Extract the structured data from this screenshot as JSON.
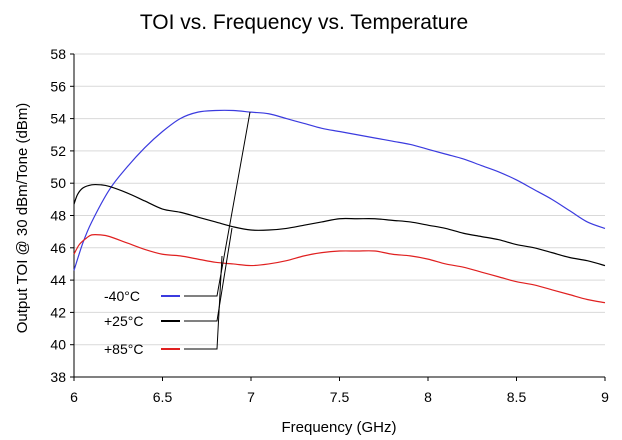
{
  "chart_data": {
    "type": "line",
    "title": "TOI vs. Frequency vs. Temperature",
    "xlabel": "Frequency (GHz)",
    "ylabel": "Output TOI @ 30 dBm/Tone (dBm)",
    "xlim": [
      6,
      9
    ],
    "ylim": [
      38,
      58
    ],
    "xticks": [
      6,
      6.5,
      7,
      7.5,
      8,
      8.5,
      9
    ],
    "xtick_labels": [
      "6",
      "6.5",
      "7",
      "7.5",
      "8",
      "8.5",
      "9"
    ],
    "yticks": [
      38,
      40,
      42,
      44,
      46,
      48,
      50,
      52,
      54,
      56,
      58
    ],
    "ytick_labels": [
      "38",
      "40",
      "42",
      "44",
      "46",
      "48",
      "50",
      "52",
      "54",
      "56",
      "58"
    ],
    "grid": "horizontal",
    "legend_placement": "lower-left",
    "series": [
      {
        "name": "-40°C",
        "color": "#3b3bdf",
        "x": [
          6.0,
          6.05,
          6.1,
          6.2,
          6.3,
          6.4,
          6.5,
          6.6,
          6.7,
          6.8,
          6.9,
          7.0,
          7.1,
          7.2,
          7.3,
          7.4,
          7.5,
          7.6,
          7.7,
          7.8,
          7.9,
          8.0,
          8.1,
          8.2,
          8.3,
          8.4,
          8.5,
          8.6,
          8.7,
          8.8,
          8.9,
          9.0
        ],
        "y": [
          44.6,
          46.3,
          47.6,
          49.6,
          51.0,
          52.2,
          53.2,
          54.0,
          54.4,
          54.5,
          54.5,
          54.4,
          54.3,
          54.0,
          53.7,
          53.4,
          53.2,
          53.0,
          52.8,
          52.6,
          52.4,
          52.1,
          51.8,
          51.5,
          51.1,
          50.7,
          50.2,
          49.6,
          49.0,
          48.3,
          47.6,
          47.2
        ]
      },
      {
        "name": "+25°C",
        "color": "#000000",
        "x": [
          6.0,
          6.02,
          6.05,
          6.1,
          6.15,
          6.2,
          6.3,
          6.4,
          6.5,
          6.6,
          6.7,
          6.8,
          6.9,
          7.0,
          7.1,
          7.2,
          7.3,
          7.4,
          7.5,
          7.6,
          7.7,
          7.8,
          7.9,
          8.0,
          8.1,
          8.2,
          8.3,
          8.4,
          8.5,
          8.6,
          8.7,
          8.8,
          8.9,
          9.0
        ],
        "y": [
          48.7,
          49.3,
          49.7,
          49.9,
          49.9,
          49.8,
          49.4,
          48.9,
          48.4,
          48.2,
          47.9,
          47.6,
          47.3,
          47.1,
          47.1,
          47.2,
          47.4,
          47.6,
          47.8,
          47.8,
          47.8,
          47.7,
          47.6,
          47.4,
          47.2,
          46.9,
          46.7,
          46.5,
          46.2,
          46.0,
          45.7,
          45.4,
          45.2,
          44.9
        ]
      },
      {
        "name": "+85°C",
        "color": "#e02020",
        "x": [
          6.0,
          6.03,
          6.07,
          6.1,
          6.15,
          6.2,
          6.3,
          6.4,
          6.5,
          6.6,
          6.7,
          6.8,
          6.9,
          7.0,
          7.1,
          7.2,
          7.3,
          7.4,
          7.5,
          7.6,
          7.7,
          7.8,
          7.9,
          8.0,
          8.1,
          8.2,
          8.3,
          8.4,
          8.5,
          8.6,
          8.7,
          8.8,
          8.9,
          9.0
        ],
        "y": [
          45.6,
          46.2,
          46.6,
          46.8,
          46.8,
          46.7,
          46.3,
          45.9,
          45.6,
          45.5,
          45.3,
          45.1,
          45.0,
          44.9,
          45.0,
          45.2,
          45.5,
          45.7,
          45.8,
          45.8,
          45.8,
          45.6,
          45.5,
          45.3,
          45.0,
          44.8,
          44.5,
          44.2,
          43.9,
          43.7,
          43.4,
          43.1,
          42.8,
          42.6
        ]
      }
    ]
  }
}
